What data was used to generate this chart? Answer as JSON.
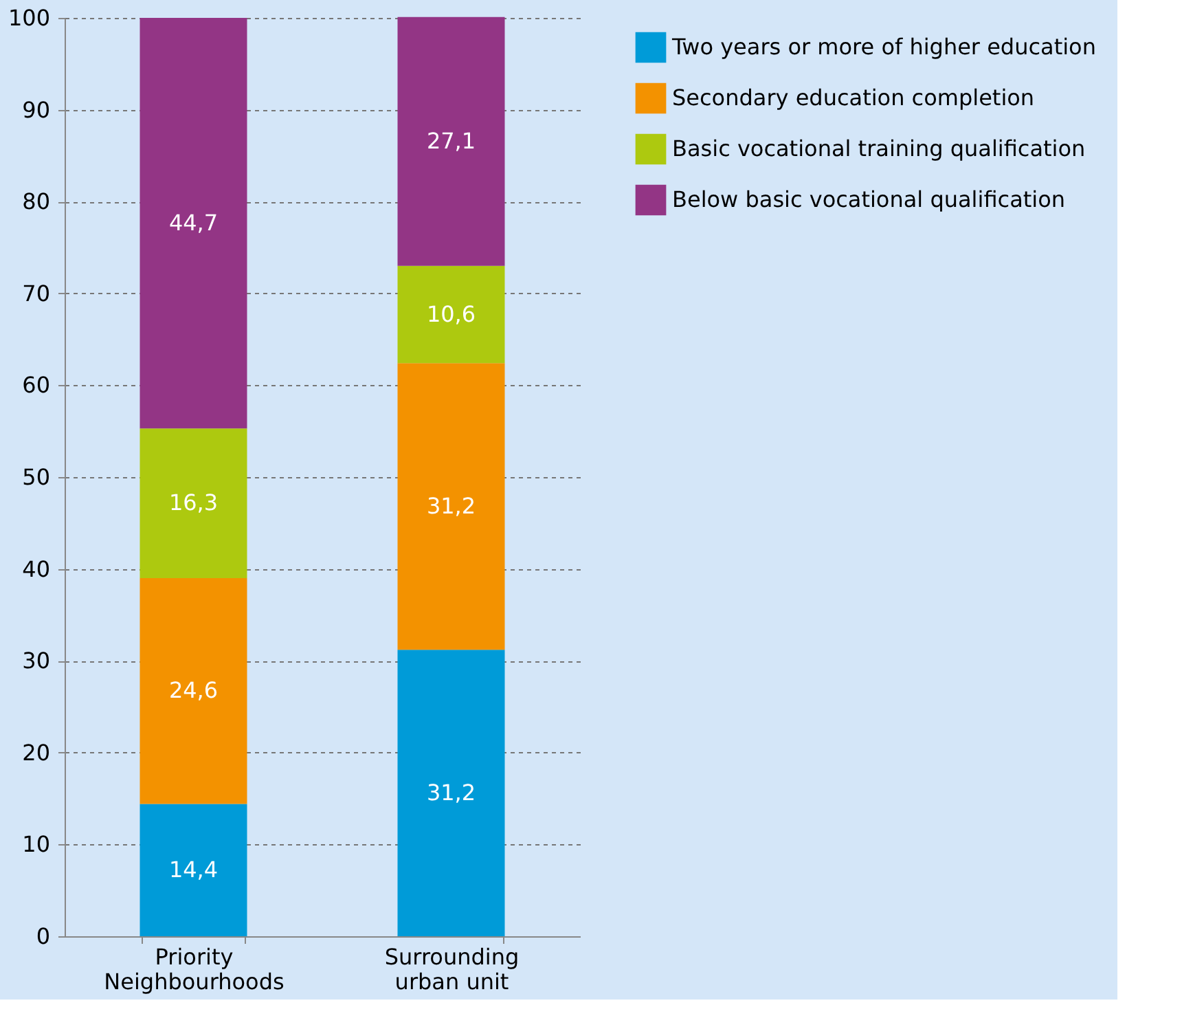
{
  "chart_data": {
    "type": "bar",
    "stacked": true,
    "categories": [
      "Priority Neighbourhoods",
      "Surrounding urban unit"
    ],
    "series": [
      {
        "name": "Two years or more of higher education",
        "color": "#009bd8",
        "values": [
          14.4,
          31.2
        ],
        "value_labels": [
          "14,4",
          "31,2"
        ]
      },
      {
        "name": "Secondary education completion",
        "color": "#f39200",
        "values": [
          24.6,
          31.2
        ],
        "value_labels": [
          "24,6",
          "31,2"
        ]
      },
      {
        "name": "Basic vocational training qualification",
        "color": "#adc90f",
        "values": [
          16.3,
          10.6
        ],
        "value_labels": [
          "16,3",
          "10,6"
        ]
      },
      {
        "name": "Below basic vocational qualification",
        "color": "#933585",
        "values": [
          44.7,
          27.1
        ],
        "value_labels": [
          "44,7",
          "27,1"
        ]
      }
    ],
    "ylim": [
      0,
      100
    ],
    "yticks": [
      0,
      10,
      20,
      30,
      40,
      50,
      60,
      70,
      80,
      90,
      100
    ],
    "grid": "y",
    "legend": "right"
  }
}
